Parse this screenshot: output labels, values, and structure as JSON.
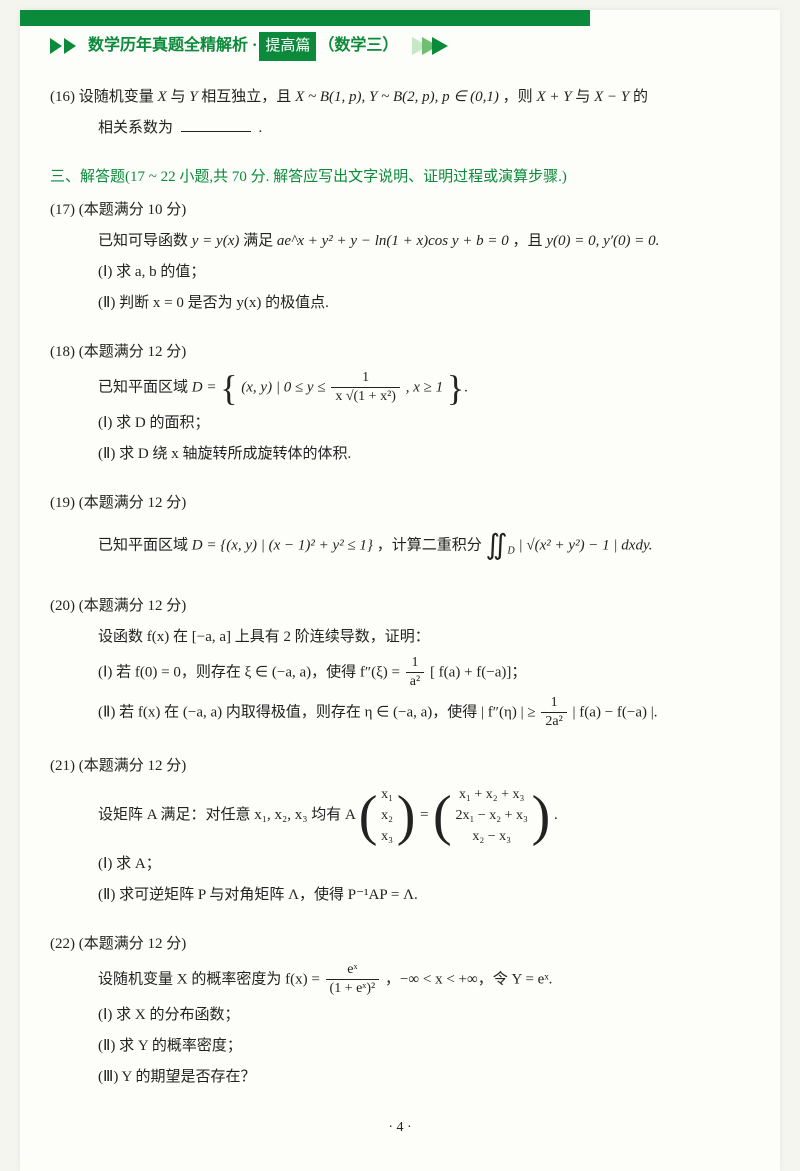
{
  "header": {
    "title_prefix": "数学历年真题全精解析 · ",
    "badge": "提高篇",
    "sub": "（数学三）"
  },
  "p16": {
    "num": "(16)",
    "text1": "设随机变量 ",
    "text2": " 与 ",
    "text3": " 相互独立，且 ",
    "text4": "，则 ",
    "text5": " 与 ",
    "text6": " 的",
    "text7": "相关系数为",
    "dot": ".",
    "X": "X",
    "Y": "Y",
    "dist": "X ~ B(1, p), Y ~ B(2, p), p ∈ (0,1)",
    "XpY": "X + Y",
    "XmY": "X − Y"
  },
  "section3": "三、解答题(17 ~ 22 小题,共 70 分. 解答应写出文字说明、证明过程或演算步骤.)",
  "p17": {
    "num": "(17)",
    "pts": "(本题满分 10 分)",
    "l1a": "已知可导函数 ",
    "l1b": " 满足 ",
    "l1c": "，且 ",
    "eq_y": "y = y(x)",
    "eq_main": "ae^x + y² + y − ln(1 + x)cos y + b = 0",
    "eq_cond": "y(0) = 0, y′(0) = 0.",
    "i": "(Ⅰ) 求 a, b 的值；",
    "ii": "(Ⅱ) 判断 x = 0 是否为 y(x) 的极值点."
  },
  "p18": {
    "num": "(18)",
    "pts": "(本题满分 12 分)",
    "l1": "已知平面区域 ",
    "D": "D = ",
    "set_l": "(x, y) | 0 ≤ y ≤ ",
    "frac_n": "1",
    "frac_d": "x √(1 + x²)",
    "set_r": ", x ≥ 1",
    "i": "(Ⅰ) 求 D 的面积；",
    "ii": "(Ⅱ) 求 D 绕 x 轴旋转所成旋转体的体积."
  },
  "p19": {
    "num": "(19)",
    "pts": "(本题满分 12 分)",
    "l1": "已知平面区域 ",
    "set": "D = {(x, y) | (x − 1)² + y² ≤ 1}",
    "l2": "，计算二重积分",
    "int_body": "| √(x² + y²) − 1 | dxdy.",
    "int_sub": "D"
  },
  "p20": {
    "num": "(20)",
    "pts": "(本题满分 12 分)",
    "l1": "设函数 f(x) 在 [−a, a] 上具有 2 阶连续导数，证明：",
    "i_a": "(Ⅰ) 若 f(0) = 0，则存在 ξ ∈ (−a, a)，使得 f″(ξ) = ",
    "i_frac_n": "1",
    "i_frac_d": "a²",
    "i_b": "[ f(a) + f(−a)]；",
    "ii_a": "(Ⅱ) 若 f(x) 在 (−a, a) 内取得极值，则存在 η ∈ (−a, a)，使得 | f″(η) | ≥ ",
    "ii_frac_n": "1",
    "ii_frac_d": "2a²",
    "ii_b": " | f(a) − f(−a) |."
  },
  "p21": {
    "num": "(21)",
    "pts": "(本题满分 12 分)",
    "l1": "设矩阵 A 满足：对任意 x₁, x₂, x₃ 均有 A",
    "eq": " = ",
    "v1": "x₁",
    "v2": "x₂",
    "v3": "x₃",
    "r1": "x₁ + x₂ + x₃",
    "r2": "2x₁ − x₂ + x₃",
    "r3": "x₂ − x₃",
    "dot": ".",
    "i": "(Ⅰ) 求 A；",
    "ii": "(Ⅱ) 求可逆矩阵 P 与对角矩阵 Λ，使得 P⁻¹AP = Λ."
  },
  "p22": {
    "num": "(22)",
    "pts": "(本题满分 12 分)",
    "l1a": "设随机变量 X 的概率密度为 f(x) = ",
    "frac_n": "eˣ",
    "frac_d": "(1 + eˣ)²",
    "l1b": "，−∞ < x < +∞，令 Y = eˣ.",
    "i": "(Ⅰ) 求 X 的分布函数；",
    "ii": "(Ⅱ) 求 Y 的概率密度；",
    "iii": "(Ⅲ) Y 的期望是否存在？"
  },
  "page_num": "· 4 ·"
}
